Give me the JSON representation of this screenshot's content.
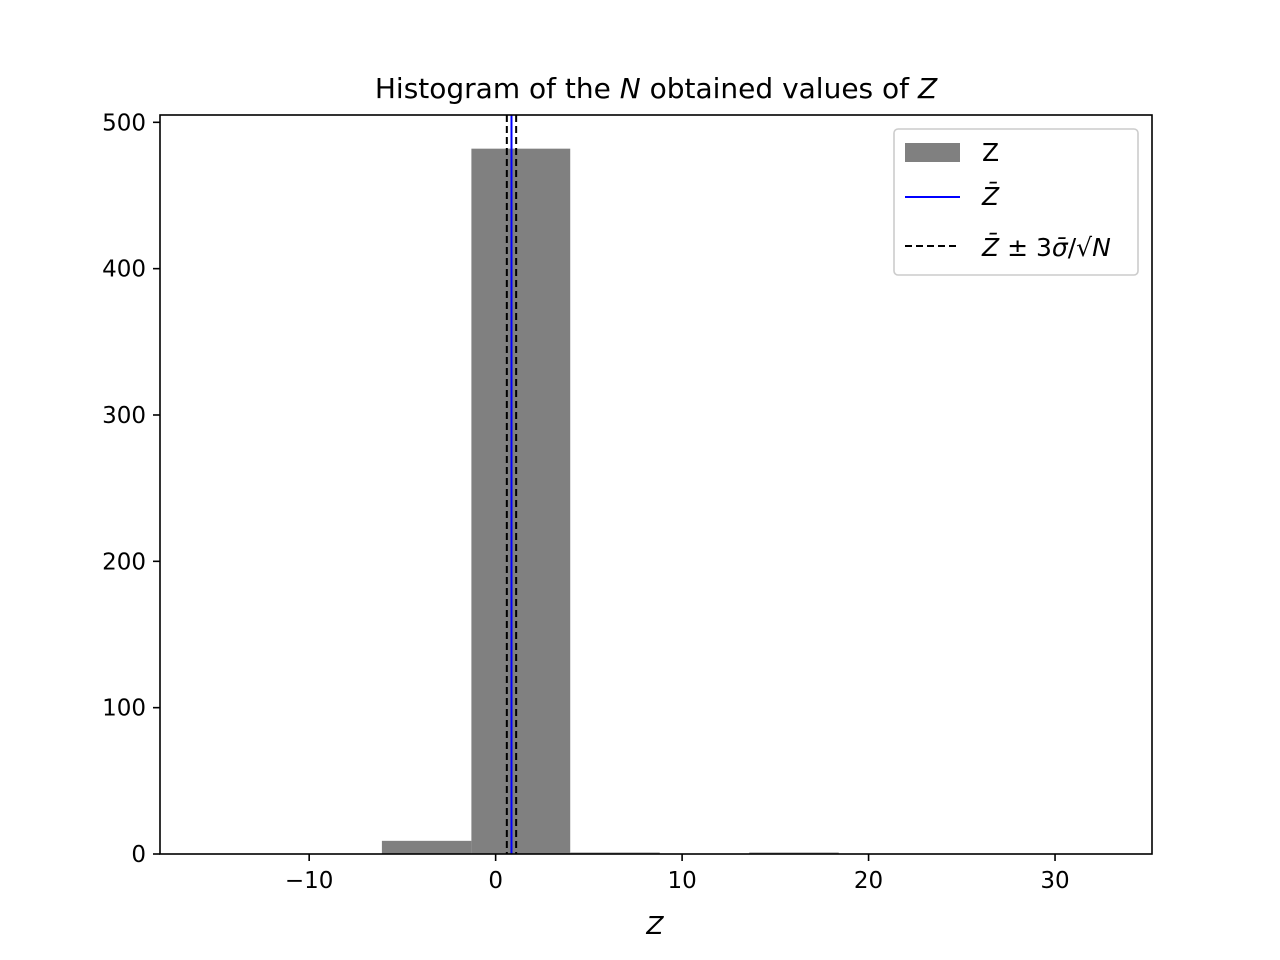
{
  "chart_data": {
    "type": "bar",
    "title_parts": [
      "Histogram of the ",
      "N",
      " obtained values of ",
      "Z"
    ],
    "xlabel": "Z",
    "ylabel": "",
    "xlim": [
      -18,
      35.2
    ],
    "ylim": [
      0,
      505
    ],
    "xticks": [
      -10,
      0,
      10,
      20,
      30
    ],
    "xtick_labels": [
      "−10",
      "0",
      "10",
      "20",
      "30"
    ],
    "yticks": [
      0,
      100,
      200,
      300,
      400,
      500
    ],
    "ytick_labels": [
      "0",
      "100",
      "200",
      "300",
      "400",
      "500"
    ],
    "bins": [
      {
        "x0": -15.7,
        "x1": -10.9,
        "count": 0
      },
      {
        "x0": -10.9,
        "x1": -6.1,
        "count": 0
      },
      {
        "x0": -6.1,
        "x1": -1.3,
        "count": 9
      },
      {
        "x0": -1.3,
        "x1": 4.0,
        "count": 482
      },
      {
        "x0": 4.0,
        "x1": 8.8,
        "count": 1
      },
      {
        "x0": 8.8,
        "x1": 13.6,
        "count": 0
      },
      {
        "x0": 13.6,
        "x1": 18.4,
        "count": 1
      },
      {
        "x0": 18.4,
        "x1": 23.2,
        "count": 0
      },
      {
        "x0": 23.2,
        "x1": 28.0,
        "count": 0
      },
      {
        "x0": 28.0,
        "x1": 32.8,
        "count": 0
      }
    ],
    "mean": 0.85,
    "band": [
      0.6,
      1.1
    ],
    "grid": false,
    "legend_position": "top-right",
    "legend": [
      {
        "kind": "patch",
        "label": "Z"
      },
      {
        "kind": "solid-line",
        "label_parts": [
          "Z̄"
        ]
      },
      {
        "kind": "dashed-line",
        "label_parts": [
          "Z̄",
          " ± 3",
          "σ̄",
          "/√",
          "N"
        ]
      }
    ],
    "colors": {
      "bars": "#808080",
      "mean": "#0000ff",
      "band": "#000000"
    }
  }
}
